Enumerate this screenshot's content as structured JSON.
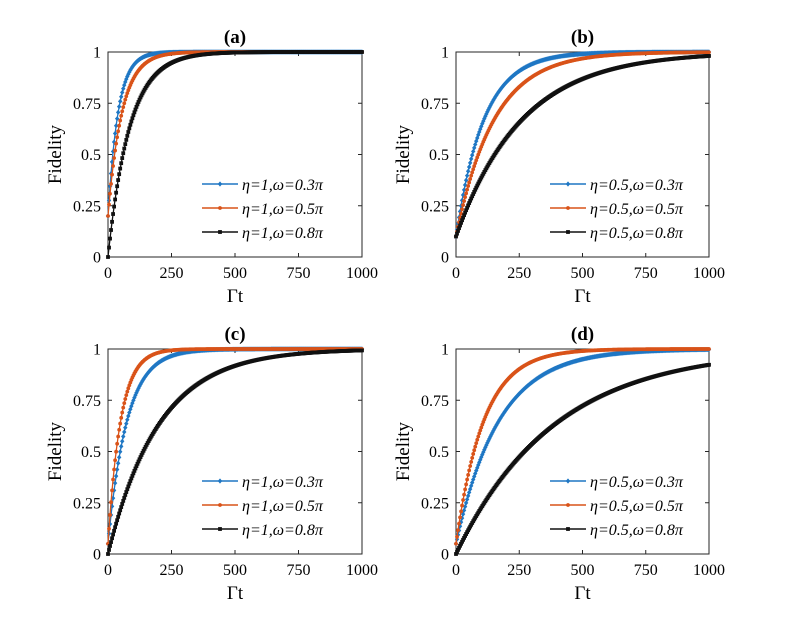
{
  "figure": {
    "colors": {
      "c1": "#1f77c4",
      "c2": "#d95319",
      "c3": "#111111"
    }
  },
  "chart_data": [
    {
      "type": "line",
      "title": "(a)",
      "xlabel": "Γt",
      "ylabel": "Fidelity",
      "xlim": [
        0,
        1000
      ],
      "ylim": [
        0,
        1
      ],
      "xticks": [
        "0",
        "250",
        "500",
        "750",
        "1000"
      ],
      "yticks": [
        "0",
        "0.25",
        "0.5",
        "0.75",
        "1"
      ],
      "legend_position": "bottom-right",
      "series": [
        {
          "name": "η=1,ω=0.3π",
          "color": "#1f77c4",
          "marker": "diamond",
          "tau": 40,
          "start": 0.2
        },
        {
          "name": "η=1,ω=0.5π",
          "color": "#d95319",
          "marker": "dot",
          "tau": 55,
          "start": 0.2
        },
        {
          "name": "η=1,ω=0.8π",
          "color": "#111111",
          "marker": "square",
          "tau": 85,
          "start": 0.0
        }
      ]
    },
    {
      "type": "line",
      "title": "(b)",
      "xlabel": "Γt",
      "ylabel": "Fidelity",
      "xlim": [
        0,
        1000
      ],
      "ylim": [
        0,
        1
      ],
      "xticks": [
        "0",
        "250",
        "500",
        "750",
        "1000"
      ],
      "yticks": [
        "0",
        "0.25",
        "0.5",
        "0.75",
        "1"
      ],
      "legend_position": "bottom-right",
      "series": [
        {
          "name": "η=0.5,ω=0.3π",
          "color": "#1f77c4",
          "marker": "diamond",
          "tau": 110,
          "start": 0.1
        },
        {
          "name": "η=0.5,ω=0.5π",
          "color": "#d95319",
          "marker": "dot",
          "tau": 150,
          "start": 0.1
        },
        {
          "name": "η=0.5,ω=0.8π",
          "color": "#111111",
          "marker": "square",
          "tau": 260,
          "start": 0.1
        }
      ]
    },
    {
      "type": "line",
      "title": "(c)",
      "xlabel": "Γt",
      "ylabel": "Fidelity",
      "xlim": [
        0,
        1000
      ],
      "ylim": [
        0,
        1
      ],
      "xticks": [
        "0",
        "250",
        "500",
        "750",
        "1000"
      ],
      "yticks": [
        "0",
        "0.25",
        "0.5",
        "0.75",
        "1"
      ],
      "legend_position": "bottom-right",
      "series": [
        {
          "name": "η=1,ω=0.3π",
          "color": "#1f77c4",
          "marker": "diamond",
          "tau": 75,
          "start": 0.05
        },
        {
          "name": "η=1,ω=0.5π",
          "color": "#d95319",
          "marker": "dot",
          "tau": 50,
          "start": 0.05
        },
        {
          "name": "η=1,ω=0.8π",
          "color": "#111111",
          "marker": "square",
          "tau": 200,
          "start": 0.0
        }
      ]
    },
    {
      "type": "line",
      "title": "(d)",
      "xlabel": "Γt",
      "ylabel": "Fidelity",
      "xlim": [
        0,
        1000
      ],
      "ylim": [
        0,
        1
      ],
      "xticks": [
        "0",
        "250",
        "500",
        "750",
        "1000"
      ],
      "yticks": [
        "0",
        "0.25",
        "0.5",
        "0.75",
        "1"
      ],
      "legend_position": "bottom-right",
      "series": [
        {
          "name": "η=0.5,ω=0.3π",
          "color": "#1f77c4",
          "marker": "diamond",
          "tau": 170,
          "start": 0.05
        },
        {
          "name": "η=0.5,ω=0.5π",
          "color": "#d95319",
          "marker": "dot",
          "tau": 110,
          "start": 0.05
        },
        {
          "name": "η=0.5,ω=0.8π",
          "color": "#111111",
          "marker": "square",
          "tau": 390,
          "start": 0.0
        }
      ]
    }
  ]
}
